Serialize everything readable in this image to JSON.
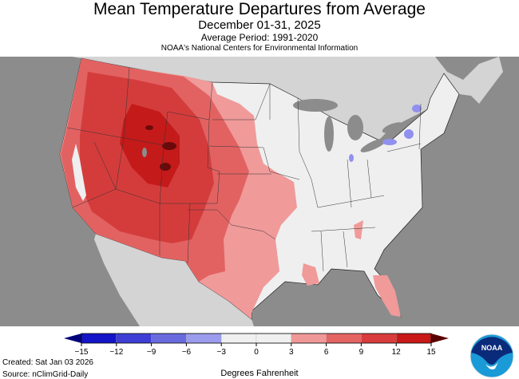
{
  "header": {
    "title": "Mean Temperature Departures from Average",
    "subtitle": "December 01-31, 2025",
    "average_period": "Average Period: 1991-2020",
    "agency": "NOAA's National Centers for Environmental Information"
  },
  "legend": {
    "ticks": [
      "−15",
      "−12",
      "−9",
      "−6",
      "−3",
      "0",
      "3",
      "6",
      "9",
      "12",
      "15"
    ],
    "colors": [
      "#1414c8",
      "#3e3ed6",
      "#6a6adf",
      "#9c9cee",
      "#f0f0f0",
      "#f0f0f0",
      "#f09898",
      "#e46464",
      "#d83c3c",
      "#c81818"
    ],
    "under_color": "#00007a",
    "over_color": "#5a0000",
    "units": "Degrees Fahrenheit"
  },
  "footer": {
    "created": "Created: Sat Jan 03 2026",
    "source": "Source: nClimGrid-Daily"
  },
  "logo": {
    "text": "NOAA"
  },
  "map_colors": {
    "ocean": "#8c8c8c",
    "neighbor_land": "#d4d4d4",
    "near_normal": "#efefef",
    "light_warm": "#f09a9a",
    "warm": "#e26262",
    "hot": "#d43c3c",
    "very_hot": "#c41a1a",
    "extreme": "#6a0a0a",
    "cool": "#9090f0"
  }
}
